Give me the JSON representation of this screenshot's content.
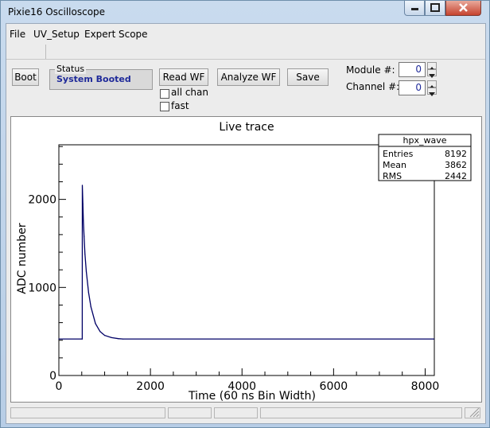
{
  "window": {
    "title": "Pixie16 Oscilloscope"
  },
  "menu": {
    "items": [
      "File",
      "UV_Setup",
      "Expert",
      "Scope"
    ]
  },
  "toolbar": {
    "boot_label": "Boot",
    "status_group_label": "Status",
    "status_value": "System Booted",
    "read_wf_label": "Read WF",
    "analyze_wf_label": "Analyze WF",
    "save_label": "Save",
    "all_chan_label": "all chan",
    "all_chan_checked": false,
    "fast_label": "fast",
    "fast_checked": false,
    "module_label": "Module #:",
    "module_value": "0",
    "channel_label": "Channel #:",
    "channel_value": "0"
  },
  "stats": {
    "title": "hpx_wave",
    "rows": [
      {
        "label": "Entries",
        "value": "8192"
      },
      {
        "label": "Mean",
        "value": "3862"
      },
      {
        "label": "RMS",
        "value": "2442"
      }
    ]
  },
  "chart_data": {
    "type": "line",
    "title": "Live trace",
    "xlabel": "Time (60 ns Bin Width)",
    "ylabel": "ADC number",
    "xlim": [
      0,
      8200
    ],
    "ylim": [
      0,
      2620
    ],
    "x_ticks": [
      "0",
      "2000",
      "4000",
      "6000",
      "8000"
    ],
    "y_ticks": [
      "0",
      "1000",
      "2000"
    ],
    "series": [
      {
        "color": "#000066",
        "x": [
          0,
          510,
          512,
          525,
          535,
          550,
          570,
          600,
          650,
          700,
          800,
          900,
          1000,
          1150,
          1300,
          1400,
          8192
        ],
        "y": [
          415,
          415,
          2160,
          1950,
          1760,
          1580,
          1380,
          1180,
          940,
          780,
          590,
          500,
          455,
          430,
          418,
          415,
          415
        ]
      }
    ],
    "grid": false
  },
  "statusbar": {
    "cells": [
      "",
      "",
      "",
      "",
      ""
    ]
  }
}
